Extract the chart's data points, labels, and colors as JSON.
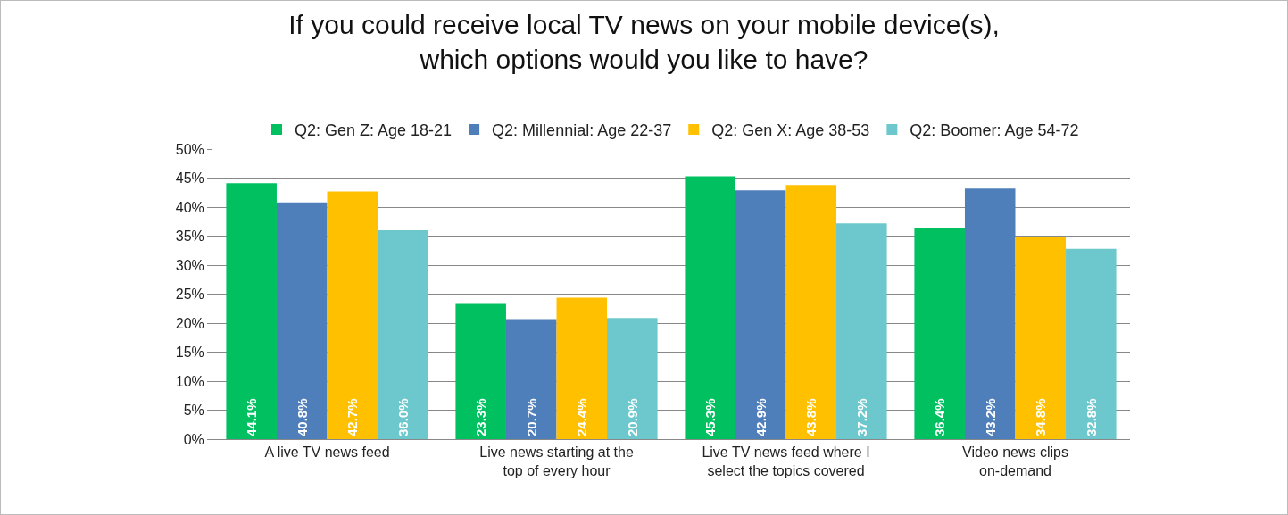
{
  "chart_data": {
    "type": "bar",
    "title": "If you could receive local TV news on your mobile device(s),\nwhich options would you like to have?",
    "categories": [
      "A live TV news feed",
      "Live news starting at the top of every hour",
      "Live TV news feed where I select the topics covered",
      "Video news clips on-demand"
    ],
    "series": [
      {
        "name": "Q2: Gen Z: Age 18-21",
        "color": "#00c060",
        "values": [
          44.1,
          23.3,
          45.3,
          36.4
        ],
        "value_labels": [
          "44.1%",
          "23.3%",
          "45.3%",
          "36.4%"
        ]
      },
      {
        "name": "Q2: Millennial: Age 22-37",
        "color": "#4f7fba",
        "values": [
          40.8,
          20.7,
          42.9,
          43.2
        ],
        "value_labels": [
          "40.8%",
          "20.7%",
          "42.9%",
          "43.2%"
        ]
      },
      {
        "name": "Q2: Gen X: Age 38-53",
        "color": "#ffc000",
        "values": [
          42.7,
          24.4,
          43.8,
          34.8
        ],
        "value_labels": [
          "42.7%",
          "24.4%",
          "43.8%",
          "34.8%"
        ]
      },
      {
        "name": "Q2: Boomer: Age 54-72",
        "color": "#6cc8cc",
        "values": [
          36.0,
          20.9,
          37.2,
          32.8
        ],
        "value_labels": [
          "36.0%",
          "20.9%",
          "37.2%",
          "32.8%"
        ]
      }
    ],
    "ylim": [
      0,
      50
    ],
    "yticks": [
      {
        "value": 0,
        "label": "0%"
      },
      {
        "value": 5,
        "label": "5%"
      },
      {
        "value": 10,
        "label": "10%"
      },
      {
        "value": 15,
        "label": "15%"
      },
      {
        "value": 20,
        "label": "20%"
      },
      {
        "value": 25,
        "label": "25%"
      },
      {
        "value": 30,
        "label": "30%"
      },
      {
        "value": 35,
        "label": "35%"
      },
      {
        "value": 40,
        "label": "40%"
      },
      {
        "value": 45,
        "label": "45%"
      },
      {
        "value": 50,
        "label": "50%"
      }
    ],
    "grid": "y",
    "legend": "top"
  }
}
